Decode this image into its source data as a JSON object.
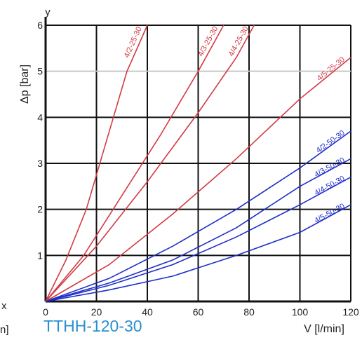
{
  "caption": "TTHH-120-30",
  "left_edge": {
    "x_fragment": "x",
    "unit_fragment": "n]"
  },
  "colors": {
    "red": "#d23a44",
    "blue": "#1f2fc8",
    "grid": "#111111",
    "grid_light": "#c8c8c8"
  },
  "chart_data": {
    "type": "line",
    "xlabel": "V [l/min]",
    "ylabel": "Δp [bar]",
    "x_axis_letter": "x",
    "y_axis_letter": "y",
    "xlim": [
      0,
      120
    ],
    "ylim": [
      0,
      6
    ],
    "x_ticks": [
      "0",
      "20",
      "40",
      "60",
      "80",
      "100",
      "120"
    ],
    "y_ticks": [
      "0",
      "1",
      "2",
      "3",
      "4",
      "5",
      "6"
    ],
    "grid": true,
    "series": [
      {
        "name": "4/2-25-30",
        "color": "red",
        "points": [
          [
            0,
            0
          ],
          [
            8,
            0.9
          ],
          [
            16,
            2.0
          ],
          [
            24,
            3.5
          ],
          [
            32,
            5.0
          ],
          [
            40,
            6.0
          ]
        ]
      },
      {
        "name": "4/3-25-30",
        "color": "red",
        "points": [
          [
            0,
            0
          ],
          [
            15,
            1.0
          ],
          [
            30,
            2.3
          ],
          [
            45,
            3.6
          ],
          [
            60,
            5.0
          ],
          [
            70,
            6.0
          ]
        ]
      },
      {
        "name": "4/4-25-30",
        "color": "red",
        "points": [
          [
            0,
            0
          ],
          [
            20,
            1.2
          ],
          [
            40,
            2.6
          ],
          [
            60,
            4.1
          ],
          [
            75,
            5.3
          ],
          [
            82,
            6.0
          ]
        ]
      },
      {
        "name": "4/5-25-30",
        "color": "red",
        "points": [
          [
            0,
            0
          ],
          [
            25,
            0.8
          ],
          [
            50,
            1.9
          ],
          [
            75,
            3.1
          ],
          [
            100,
            4.4
          ],
          [
            120,
            5.3
          ]
        ]
      },
      {
        "name": "4/2-50-30",
        "color": "blue",
        "points": [
          [
            0,
            0
          ],
          [
            25,
            0.5
          ],
          [
            50,
            1.2
          ],
          [
            75,
            2.0
          ],
          [
            100,
            2.9
          ],
          [
            120,
            3.7
          ]
        ]
      },
      {
        "name": "4/3-50-30",
        "color": "blue",
        "points": [
          [
            0,
            0
          ],
          [
            25,
            0.4
          ],
          [
            50,
            0.9
          ],
          [
            75,
            1.6
          ],
          [
            100,
            2.5
          ],
          [
            120,
            3.1
          ]
        ]
      },
      {
        "name": "4/4-50-30",
        "color": "blue",
        "points": [
          [
            0,
            0
          ],
          [
            25,
            0.35
          ],
          [
            50,
            0.8
          ],
          [
            75,
            1.4
          ],
          [
            100,
            2.1
          ],
          [
            120,
            2.7
          ]
        ]
      },
      {
        "name": "4/5-50-30",
        "color": "blue",
        "points": [
          [
            0,
            0
          ],
          [
            25,
            0.25
          ],
          [
            50,
            0.55
          ],
          [
            75,
            1.0
          ],
          [
            100,
            1.5
          ],
          [
            120,
            2.1
          ]
        ]
      }
    ]
  }
}
